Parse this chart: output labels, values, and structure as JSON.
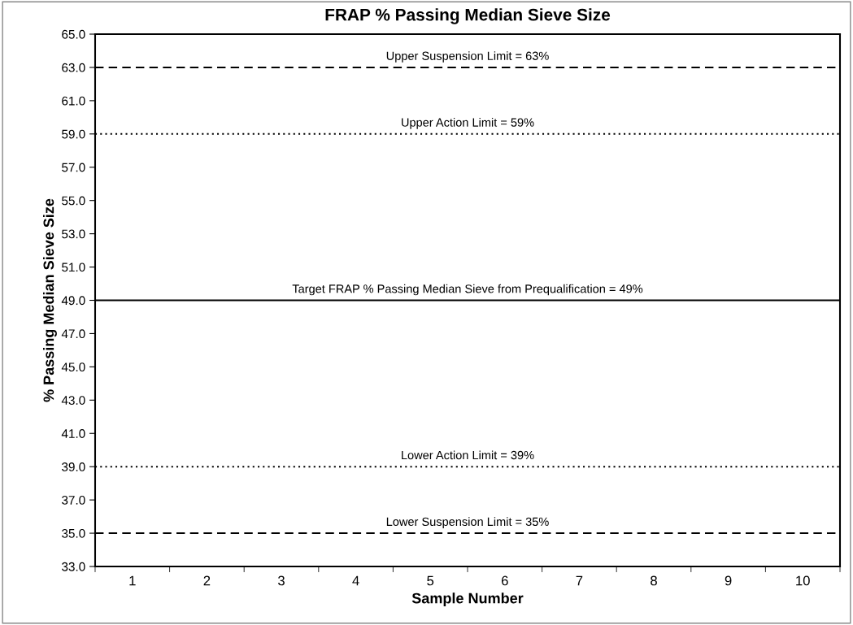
{
  "chart_data": {
    "type": "line",
    "title": "FRAP % Passing Median Sieve Size",
    "xlabel": "Sample Number",
    "ylabel": "% Passing Median Sieve Size",
    "categories": [
      "1",
      "2",
      "3",
      "4",
      "5",
      "6",
      "7",
      "8",
      "9",
      "10"
    ],
    "values": [
      null,
      null,
      null,
      null,
      null,
      null,
      null,
      null,
      null,
      null
    ],
    "ylim": [
      33,
      65
    ],
    "yticks": [
      {
        "value": 33,
        "label": "33.0"
      },
      {
        "value": 35,
        "label": "35.0"
      },
      {
        "value": 37,
        "label": "37.0"
      },
      {
        "value": 39,
        "label": "39.0"
      },
      {
        "value": 41,
        "label": "41.0"
      },
      {
        "value": 43,
        "label": "43.0"
      },
      {
        "value": 45,
        "label": "45.0"
      },
      {
        "value": 47,
        "label": "47.0"
      },
      {
        "value": 49,
        "label": "49.0"
      },
      {
        "value": 51,
        "label": "51.0"
      },
      {
        "value": 53,
        "label": "53.0"
      },
      {
        "value": 55,
        "label": "55.0"
      },
      {
        "value": 57,
        "label": "57.0"
      },
      {
        "value": 59,
        "label": "59.0"
      },
      {
        "value": 61,
        "label": "61.0"
      },
      {
        "value": 63,
        "label": "63.0"
      },
      {
        "value": 65,
        "label": "65.0"
      }
    ],
    "ref_lines": [
      {
        "axis": "y",
        "value": 63,
        "label": "Upper Suspension Limit = 63%",
        "color": "#000000",
        "line_style": "dashed"
      },
      {
        "axis": "y",
        "value": 59,
        "label": "Upper Action Limit = 59%",
        "color": "#000000",
        "line_style": "dotted"
      },
      {
        "axis": "y",
        "value": 49,
        "label": "Target FRAP % Passing Median Sieve from Prequalification = 49%",
        "color": "#000000",
        "line_style": "solid"
      },
      {
        "axis": "y",
        "value": 39,
        "label": "Lower Action Limit = 39%",
        "color": "#000000",
        "line_style": "dotted"
      },
      {
        "axis": "y",
        "value": 35,
        "label": "Lower Suspension Limit = 35%",
        "color": "#000000",
        "line_style": "dashed"
      }
    ],
    "grid": false,
    "legend": false
  }
}
